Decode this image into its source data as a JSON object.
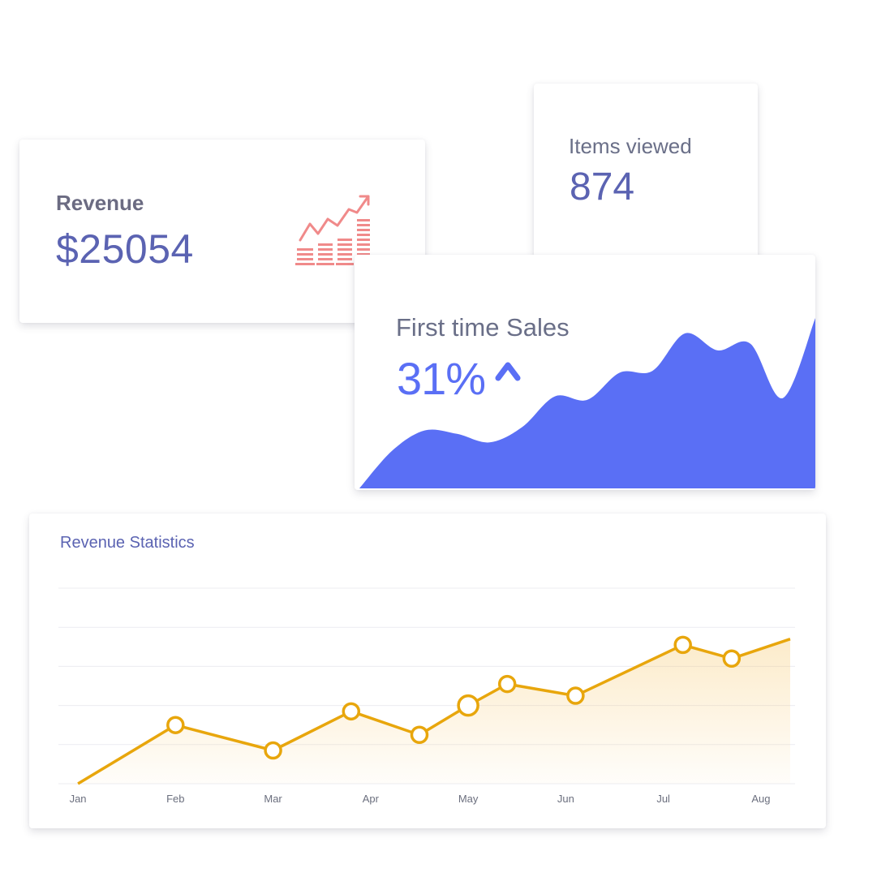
{
  "revenue": {
    "label": "Revenue",
    "value": "$25054",
    "icon": "growth-chart-icon"
  },
  "items_viewed": {
    "label": "Items viewed",
    "value": "874"
  },
  "first_time_sales": {
    "label": "First time Sales",
    "value": "31%",
    "trend_icon": "caret-up-icon"
  },
  "revenue_statistics": {
    "title": "Revenue Statistics"
  },
  "colors": {
    "accent_blue": "#5a6ff5",
    "text_indigo": "#5b63b2",
    "line_orange": "#e8a60c",
    "icon_red": "#f08a8a"
  },
  "chart_data": [
    {
      "type": "area",
      "title": "",
      "grid": false,
      "legend": "none",
      "series": [
        {
          "values": [
            0.0,
            0.22,
            0.34,
            0.32,
            0.27,
            0.36,
            0.54,
            0.52,
            0.68,
            0.69,
            0.91,
            0.81,
            0.85,
            0.53,
            1.0
          ]
        }
      ]
    },
    {
      "type": "line",
      "title": "",
      "categories": [
        "Jan",
        "Feb",
        "Mar",
        "Apr",
        "May",
        "Jun",
        "Jul",
        "Aug"
      ],
      "grid": true,
      "legend": "none",
      "series": [
        {
          "x": [
            0.0,
            1.0,
            2.0,
            2.8,
            3.5,
            4.0,
            4.4,
            5.1,
            6.2,
            6.7,
            7.3
          ],
          "values": [
            0,
            30,
            17,
            37,
            25,
            40,
            51,
            45,
            71,
            64,
            74
          ]
        }
      ],
      "ylim": [
        0,
        100
      ]
    }
  ]
}
